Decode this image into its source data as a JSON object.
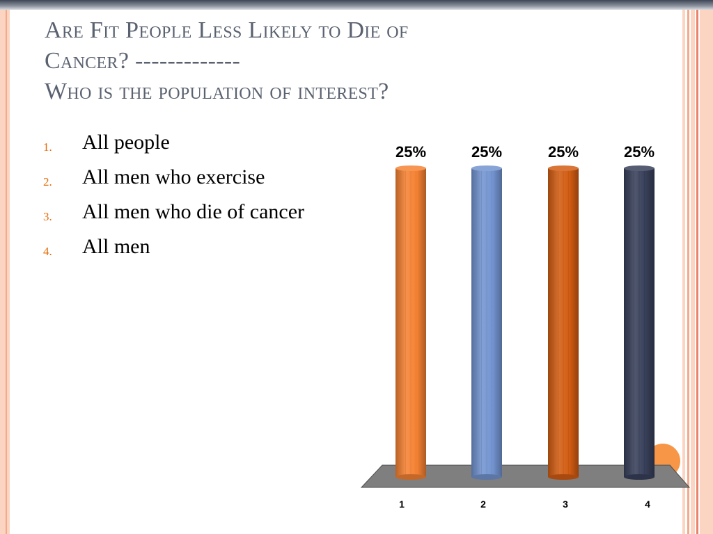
{
  "slide": {
    "title_lines": [
      "Are Fit People Less Likely to Die of",
      "Cancer? -------------",
      "Who is the population of interest?"
    ],
    "options": [
      {
        "number": "1.",
        "text": "All people"
      },
      {
        "number": "2.",
        "text": "All men who exercise"
      },
      {
        "number": "3.",
        "text": "All men who die of cancer"
      },
      {
        "number": "4.",
        "text": "All men"
      }
    ]
  },
  "theme": {
    "title_color": "#5a6270",
    "number_color": "#e46c0a",
    "stripe_colors": [
      "#fbd5c2",
      "#f4a98a",
      "#e9826a"
    ],
    "floor_color": "#7f7f7f",
    "circle_color": "#f79646"
  },
  "chart_data": {
    "type": "bar",
    "style": "3d-cylinder",
    "categories": [
      "1",
      "2",
      "3",
      "4"
    ],
    "values": [
      25,
      25,
      25,
      25
    ],
    "data_labels": [
      "25%",
      "25%",
      "25%",
      "25%"
    ],
    "colors": [
      "#f58233",
      "#7394d0",
      "#d25d13",
      "#38405a"
    ],
    "ylim": [
      0,
      25
    ],
    "grid": false,
    "title": "",
    "xlabel": "",
    "ylabel": ""
  }
}
